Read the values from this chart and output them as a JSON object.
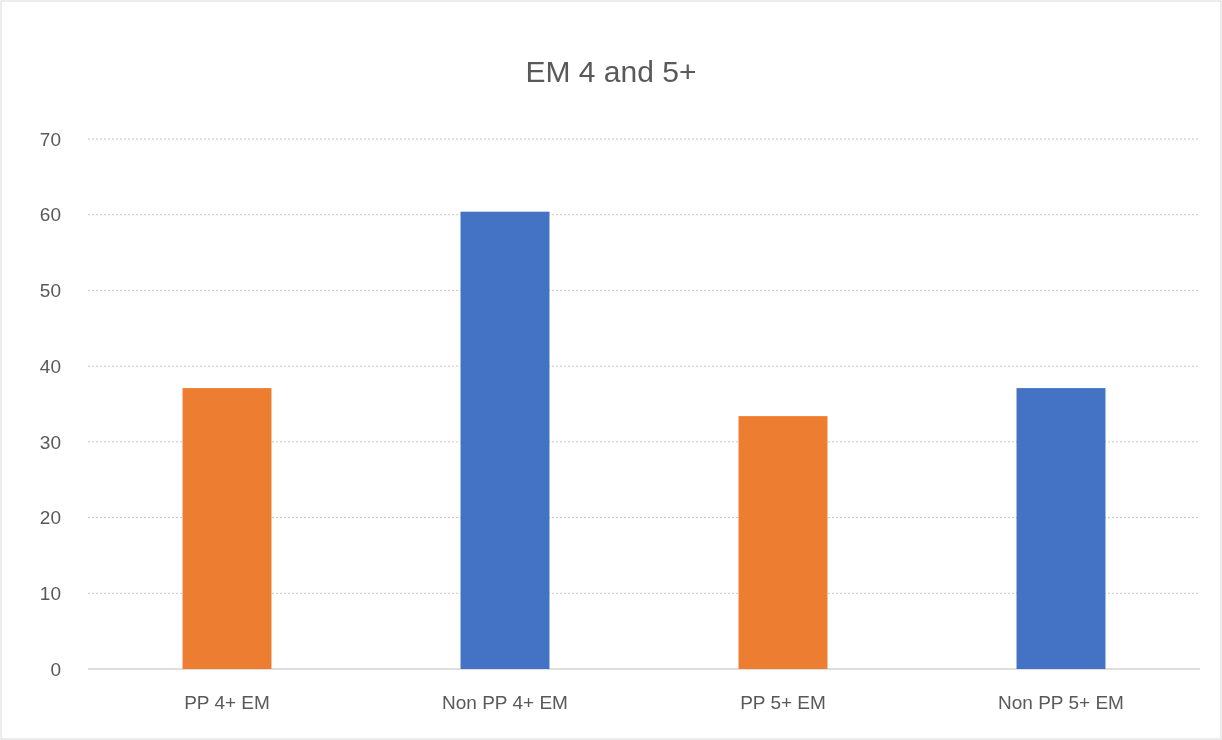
{
  "chart_data": {
    "type": "bar",
    "title": "EM 4 and 5+",
    "categories": [
      "PP 4+ EM",
      "Non PP 4+ EM",
      "PP 5+ EM",
      "Non PP 5+ EM"
    ],
    "values": [
      37.1,
      60.4,
      33.4,
      37.1
    ],
    "colors": [
      "#ed7d31",
      "#4472c4",
      "#ed7d31",
      "#4472c4"
    ],
    "ylim": [
      0,
      70
    ],
    "yticks": [
      0,
      10,
      20,
      30,
      40,
      50,
      60,
      70
    ],
    "grid": "y"
  }
}
